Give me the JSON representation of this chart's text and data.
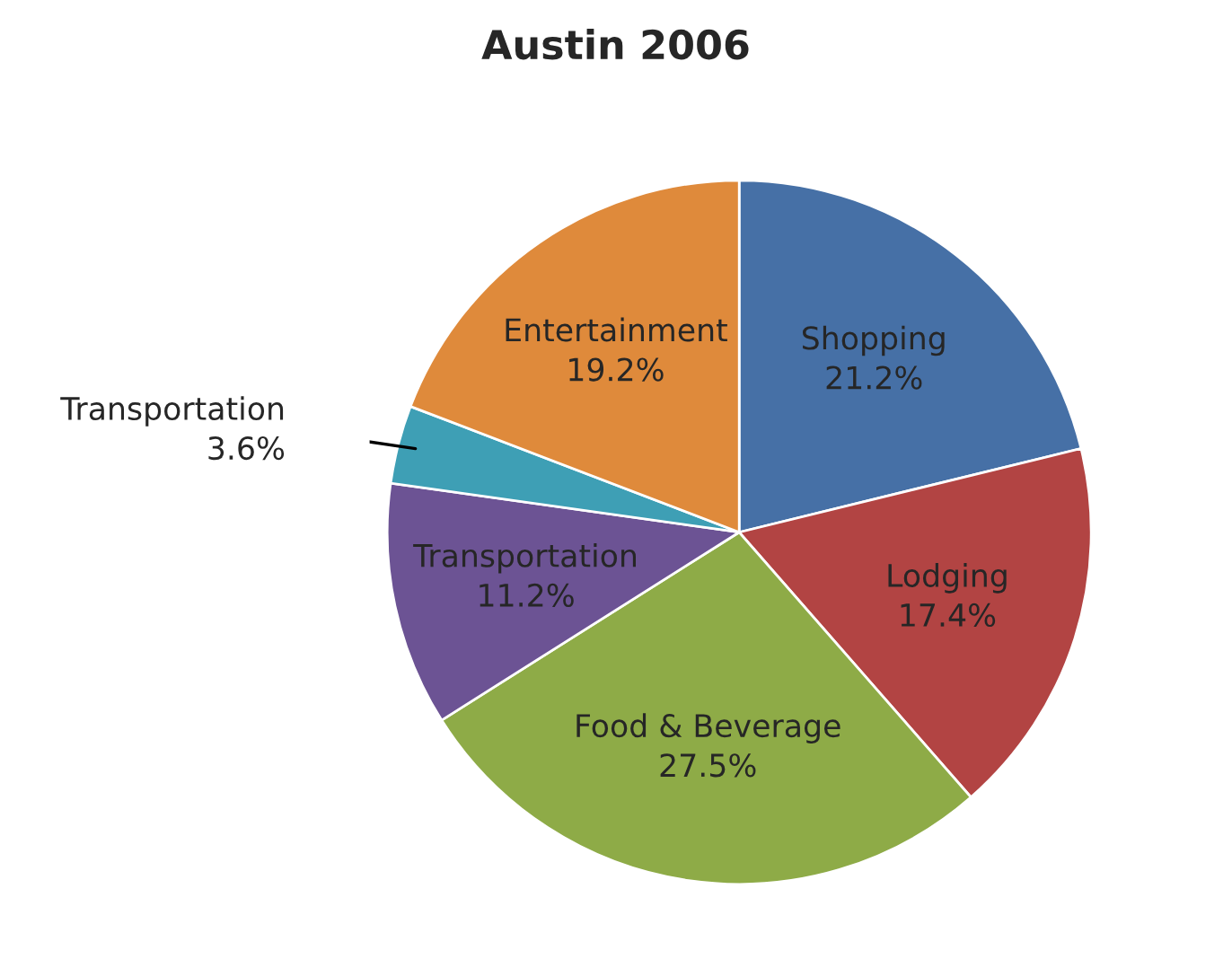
{
  "chart_data": {
    "type": "pie",
    "title": "Austin 2006",
    "categories": [
      "Shopping",
      "Lodging",
      "Food & Beverage",
      "Transportation",
      "Transportation",
      "Entertainment"
    ],
    "values": [
      21.2,
      17.4,
      27.5,
      11.2,
      3.6,
      19.2
    ],
    "value_labels": [
      "21.2%",
      "17.4%",
      "27.5%",
      "11.2%",
      "3.6%",
      "19.2%"
    ],
    "colors": [
      "#4670a6",
      "#b24443",
      "#8eab47",
      "#6c5394",
      "#3e9fb5",
      "#df8a3b"
    ]
  }
}
